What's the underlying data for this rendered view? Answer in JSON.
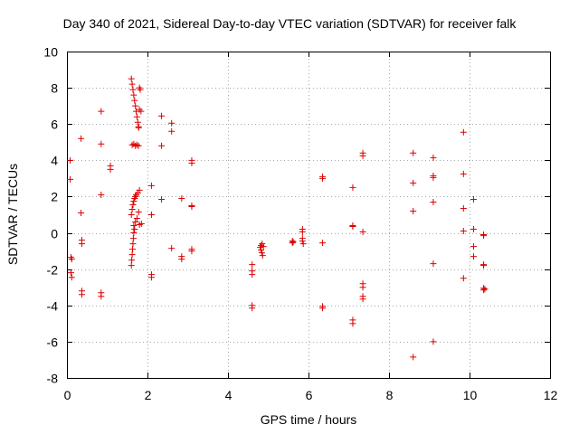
{
  "chart_data": {
    "type": "scatter",
    "title": "Day 340 of 2021, Sidereal Day-to-day VTEC variation (SDTVAR) for receiver falk",
    "xlabel": "GPS time / hours",
    "ylabel": "SDTVAR / TECUs",
    "xlim": [
      0,
      12
    ],
    "ylim": [
      -8,
      10
    ],
    "xticks": [
      "0",
      "2",
      "4",
      "6",
      "8",
      "10",
      "12"
    ],
    "yticks": [
      "-8",
      "-6",
      "-4",
      "-2",
      "0",
      "2",
      "4",
      "6",
      "8",
      "10"
    ],
    "grid": true,
    "marker": "+",
    "color": "#dd0000",
    "series": [
      {
        "name": "SDTVAR",
        "points": [
          [
            0.08,
            4.0
          ],
          [
            0.08,
            2.95
          ],
          [
            0.1,
            -1.35
          ],
          [
            0.12,
            -1.45
          ],
          [
            0.1,
            -2.2
          ],
          [
            0.12,
            -2.45
          ],
          [
            0.35,
            5.2
          ],
          [
            0.35,
            1.1
          ],
          [
            0.37,
            -0.4
          ],
          [
            0.37,
            -0.6
          ],
          [
            0.37,
            -3.2
          ],
          [
            0.37,
            -3.4
          ],
          [
            0.85,
            6.7
          ],
          [
            0.85,
            4.9
          ],
          [
            0.85,
            2.1
          ],
          [
            0.85,
            -3.3
          ],
          [
            0.85,
            -3.5
          ],
          [
            1.08,
            3.7
          ],
          [
            1.08,
            3.5
          ],
          [
            1.6,
            8.5
          ],
          [
            1.62,
            8.2
          ],
          [
            1.64,
            7.9
          ],
          [
            1.66,
            7.6
          ],
          [
            1.68,
            7.3
          ],
          [
            1.7,
            7.0
          ],
          [
            1.72,
            6.7
          ],
          [
            1.74,
            6.4
          ],
          [
            1.76,
            6.1
          ],
          [
            1.78,
            5.85
          ],
          [
            1.8,
            8.0
          ],
          [
            1.82,
            7.9
          ],
          [
            1.8,
            6.8
          ],
          [
            1.84,
            6.7
          ],
          [
            1.78,
            5.8
          ],
          [
            1.62,
            4.85
          ],
          [
            1.66,
            4.9
          ],
          [
            1.7,
            4.8
          ],
          [
            1.74,
            4.85
          ],
          [
            1.78,
            4.8
          ],
          [
            1.6,
            1.0
          ],
          [
            1.62,
            1.3
          ],
          [
            1.64,
            1.55
          ],
          [
            1.66,
            1.75
          ],
          [
            1.68,
            1.9
          ],
          [
            1.7,
            2.0
          ],
          [
            1.72,
            2.1
          ],
          [
            1.76,
            2.2
          ],
          [
            1.8,
            2.35
          ],
          [
            1.66,
            0.4
          ],
          [
            1.7,
            0.6
          ],
          [
            1.74,
            0.8
          ],
          [
            1.8,
            0.45
          ],
          [
            1.85,
            0.5
          ],
          [
            1.78,
            1.15
          ],
          [
            1.6,
            -1.8
          ],
          [
            1.61,
            -1.5
          ],
          [
            1.62,
            -1.2
          ],
          [
            1.63,
            -0.9
          ],
          [
            1.64,
            -0.6
          ],
          [
            1.65,
            -0.3
          ],
          [
            1.66,
            0.0
          ],
          [
            1.68,
            0.2
          ],
          [
            2.1,
            2.6
          ],
          [
            2.1,
            1.0
          ],
          [
            2.1,
            -2.3
          ],
          [
            2.1,
            -2.45
          ],
          [
            2.35,
            6.45
          ],
          [
            2.35,
            4.8
          ],
          [
            2.35,
            1.85
          ],
          [
            2.6,
            6.05
          ],
          [
            2.6,
            5.6
          ],
          [
            2.6,
            -0.85
          ],
          [
            2.85,
            1.9
          ],
          [
            2.85,
            -1.3
          ],
          [
            2.85,
            -1.45
          ],
          [
            3.1,
            4.0
          ],
          [
            3.1,
            3.85
          ],
          [
            3.1,
            1.5
          ],
          [
            3.1,
            1.45
          ],
          [
            3.1,
            -0.9
          ],
          [
            3.1,
            -1.0
          ],
          [
            4.6,
            -1.75
          ],
          [
            4.6,
            -2.1
          ],
          [
            4.6,
            -2.3
          ],
          [
            4.6,
            -4.0
          ],
          [
            4.6,
            -4.15
          ],
          [
            4.8,
            -0.8
          ],
          [
            4.82,
            -0.95
          ],
          [
            4.84,
            -1.1
          ],
          [
            4.86,
            -1.25
          ],
          [
            4.88,
            -0.75
          ],
          [
            4.85,
            -0.6
          ],
          [
            4.82,
            -0.7
          ],
          [
            5.6,
            -0.45
          ],
          [
            5.6,
            -0.55
          ],
          [
            5.62,
            -0.5
          ],
          [
            5.85,
            0.2
          ],
          [
            5.85,
            0.05
          ],
          [
            5.85,
            -0.3
          ],
          [
            5.85,
            -0.45
          ],
          [
            5.87,
            -0.6
          ],
          [
            6.35,
            3.1
          ],
          [
            6.35,
            3.0
          ],
          [
            6.35,
            -0.55
          ],
          [
            6.35,
            -4.05
          ],
          [
            6.35,
            -4.15
          ],
          [
            7.1,
            2.5
          ],
          [
            7.1,
            0.4
          ],
          [
            7.1,
            0.35
          ],
          [
            7.1,
            -4.8
          ],
          [
            7.1,
            -5.0
          ],
          [
            7.35,
            4.4
          ],
          [
            7.35,
            4.25
          ],
          [
            7.35,
            0.05
          ],
          [
            7.35,
            -2.8
          ],
          [
            7.35,
            -3.0
          ],
          [
            7.35,
            -3.5
          ],
          [
            7.35,
            -3.65
          ],
          [
            8.6,
            4.4
          ],
          [
            8.6,
            2.75
          ],
          [
            8.6,
            1.2
          ],
          [
            8.6,
            -6.85
          ],
          [
            9.1,
            4.15
          ],
          [
            9.1,
            3.15
          ],
          [
            9.1,
            3.05
          ],
          [
            9.1,
            1.7
          ],
          [
            9.1,
            -1.7
          ],
          [
            9.1,
            -6.0
          ],
          [
            9.85,
            5.55
          ],
          [
            9.85,
            3.25
          ],
          [
            9.85,
            1.35
          ],
          [
            9.85,
            0.1
          ],
          [
            9.85,
            -2.5
          ],
          [
            10.1,
            1.85
          ],
          [
            10.1,
            0.2
          ],
          [
            10.1,
            -0.75
          ],
          [
            10.1,
            -1.3
          ],
          [
            10.35,
            -0.1
          ],
          [
            10.35,
            -0.15
          ],
          [
            10.35,
            -1.75
          ],
          [
            10.35,
            -1.8
          ],
          [
            10.35,
            -3.05
          ],
          [
            10.35,
            -3.15
          ],
          [
            10.38,
            -3.1
          ]
        ]
      }
    ]
  }
}
